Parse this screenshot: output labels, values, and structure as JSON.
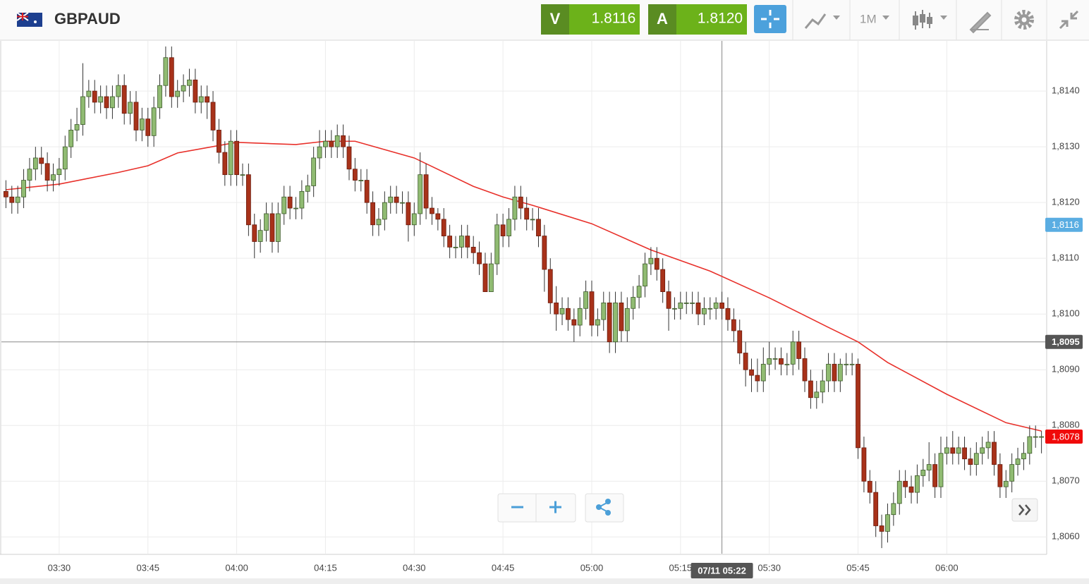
{
  "header": {
    "symbol": "GBPAUD",
    "sell": {
      "label": "V",
      "price": "1.8116"
    },
    "buy": {
      "label": "A",
      "price": "1.8120"
    },
    "timeframe": "1M"
  },
  "chart_data": {
    "type": "candlestick",
    "grid": true,
    "up_color": "#90bb72",
    "down_color": "#a8321a",
    "xlim": [
      "03:20",
      "06:17"
    ],
    "ylim": [
      1.8057,
      1.8149
    ],
    "xticks": [
      "03:30",
      "03:45",
      "04:00",
      "04:15",
      "04:30",
      "04:45",
      "05:00",
      "05:15",
      "05:30",
      "05:45",
      "06:00"
    ],
    "yticks": [
      {
        "value": 1.806,
        "label": "1,8060"
      },
      {
        "value": 1.807,
        "label": "1,8070"
      },
      {
        "value": 1.808,
        "label": "1,8080"
      },
      {
        "value": 1.809,
        "label": "1,8090"
      },
      {
        "value": 1.81,
        "label": "1,8100"
      },
      {
        "value": 1.811,
        "label": "1,8110"
      },
      {
        "value": 1.812,
        "label": "1,8120"
      },
      {
        "value": 1.813,
        "label": "1,8130"
      },
      {
        "value": 1.814,
        "label": "1,8140"
      }
    ],
    "x": [
      "03:21",
      "03:22",
      "03:23",
      "03:24",
      "03:25",
      "03:26",
      "03:27",
      "03:28",
      "03:29",
      "03:30",
      "03:31",
      "03:32",
      "03:33",
      "03:34",
      "03:35",
      "03:36",
      "03:37",
      "03:38",
      "03:39",
      "03:40",
      "03:41",
      "03:42",
      "03:43",
      "03:44",
      "03:45",
      "03:46",
      "03:47",
      "03:48",
      "03:49",
      "03:50",
      "03:51",
      "03:52",
      "03:53",
      "03:54",
      "03:55",
      "03:56",
      "03:57",
      "03:58",
      "03:59",
      "04:00",
      "04:01",
      "04:02",
      "04:03",
      "04:04",
      "04:05",
      "04:06",
      "04:07",
      "04:08",
      "04:09",
      "04:10",
      "04:11",
      "04:12",
      "04:13",
      "04:14",
      "04:15",
      "04:16",
      "04:17",
      "04:18",
      "04:19",
      "04:20",
      "04:21",
      "04:22",
      "04:23",
      "04:24",
      "04:25",
      "04:26",
      "04:27",
      "04:28",
      "04:29",
      "04:30",
      "04:31",
      "04:32",
      "04:33",
      "04:34",
      "04:35",
      "04:36",
      "04:37",
      "04:38",
      "04:39",
      "04:40",
      "04:41",
      "04:42",
      "04:43",
      "04:44",
      "04:45",
      "04:46",
      "04:47",
      "04:48",
      "04:49",
      "04:50",
      "04:51",
      "04:52",
      "04:53",
      "04:54",
      "04:55",
      "04:56",
      "04:57",
      "04:58",
      "04:59",
      "05:00",
      "05:01",
      "05:02",
      "05:03",
      "05:04",
      "05:05",
      "05:06",
      "05:07",
      "05:08",
      "05:09",
      "05:10",
      "05:11",
      "05:12",
      "05:13",
      "05:14",
      "05:15",
      "05:16",
      "05:17",
      "05:18",
      "05:19",
      "05:20",
      "05:21",
      "05:22",
      "05:23",
      "05:24",
      "05:25",
      "05:26",
      "05:27",
      "05:28",
      "05:29",
      "05:30",
      "05:31",
      "05:32",
      "05:33",
      "05:34",
      "05:35",
      "05:36",
      "05:37",
      "05:38",
      "05:39",
      "05:40",
      "05:41",
      "05:42",
      "05:43",
      "05:44",
      "05:45",
      "05:46",
      "05:47",
      "05:48",
      "05:49",
      "05:50",
      "05:51",
      "05:52",
      "05:53",
      "05:54",
      "05:55",
      "05:56",
      "05:57",
      "05:58",
      "05:59",
      "06:00",
      "06:01",
      "06:02",
      "06:03",
      "06:04",
      "06:05",
      "06:06",
      "06:07",
      "06:08",
      "06:09",
      "06:10",
      "06:11",
      "06:12",
      "06:13",
      "06:14",
      "06:15",
      "06:16"
    ],
    "open": [
      1.8122,
      1.8121,
      1.812,
      1.8121,
      1.8124,
      1.8126,
      1.8128,
      1.8127,
      1.8124,
      1.8125,
      1.8126,
      1.813,
      1.8133,
      1.8134,
      1.8139,
      1.814,
      1.8138,
      1.8139,
      1.8137,
      1.8139,
      1.8141,
      1.8136,
      1.8138,
      1.8133,
      1.8135,
      1.8132,
      1.8137,
      1.8141,
      1.8146,
      1.8139,
      1.814,
      1.8141,
      1.8142,
      1.8138,
      1.8139,
      1.8138,
      1.8133,
      1.8129,
      1.8125,
      1.8131,
      1.8125,
      1.8125,
      1.8116,
      1.8113,
      1.8115,
      1.8118,
      1.8113,
      1.8118,
      1.8121,
      1.8119,
      1.8119,
      1.8122,
      1.8123,
      1.8128,
      1.813,
      1.8131,
      1.813,
      1.8132,
      1.813,
      1.8126,
      1.8124,
      1.8124,
      1.812,
      1.8116,
      1.8117,
      1.812,
      1.8121,
      1.812,
      1.812,
      1.8116,
      1.8118,
      1.8125,
      1.8119,
      1.8118,
      1.8117,
      1.8114,
      1.8112,
      1.8112,
      1.8114,
      1.8112,
      1.8111,
      1.8109,
      1.8104,
      1.8109,
      1.8116,
      1.8114,
      1.8117,
      1.8121,
      1.8119,
      1.8117,
      1.8117,
      1.8114,
      1.8108,
      1.8102,
      1.81,
      1.8101,
      1.8099,
      1.8098,
      1.8101,
      1.8104,
      1.8098,
      1.8099,
      1.8102,
      1.8095,
      1.8102,
      1.8097,
      1.8101,
      1.8103,
      1.8105,
      1.8109,
      1.811,
      1.8108,
      1.8104,
      1.8101,
      1.8101,
      1.8102,
      1.8102,
      1.8102,
      1.81,
      1.8101,
      1.8101,
      1.8102,
      1.8101,
      1.8099,
      1.8097,
      1.8093,
      1.809,
      1.8089,
      1.8088,
      1.8091,
      1.8092,
      1.8092,
      1.8091,
      1.8091,
      1.8095,
      1.8092,
      1.8088,
      1.8085,
      1.8086,
      1.8088,
      1.8091,
      1.8088,
      1.8091,
      1.8091,
      1.8091,
      1.8076,
      1.807,
      1.8068,
      1.8062,
      1.8061,
      1.8064,
      1.8066,
      1.807,
      1.8069,
      1.8068,
      1.8071,
      1.8072,
      1.8073,
      1.8069,
      1.8075,
      1.8076,
      1.8075,
      1.8076,
      1.8074,
      1.8073,
      1.8075,
      1.8076,
      1.8077,
      1.8073,
      1.8069,
      1.807,
      1.8073,
      1.8074,
      1.8075,
      1.8078,
      1.8078
    ],
    "high": [
      1.8124,
      1.8123,
      1.8123,
      1.8126,
      1.8128,
      1.813,
      1.813,
      1.8129,
      1.8127,
      1.8128,
      1.8132,
      1.8135,
      1.8137,
      1.8145,
      1.8142,
      1.8142,
      1.8141,
      1.8141,
      1.8141,
      1.8143,
      1.8143,
      1.814,
      1.814,
      1.8137,
      1.8137,
      1.8139,
      1.8143,
      1.8148,
      1.8148,
      1.8142,
      1.8143,
      1.8144,
      1.8144,
      1.8141,
      1.8141,
      1.814,
      1.8135,
      1.8131,
      1.8133,
      1.8133,
      1.8127,
      1.8127,
      1.8118,
      1.8117,
      1.812,
      1.812,
      1.812,
      1.8123,
      1.8123,
      1.8121,
      1.8124,
      1.8125,
      1.813,
      1.8133,
      1.8133,
      1.8133,
      1.8134,
      1.8134,
      1.8132,
      1.8128,
      1.8126,
      1.8126,
      1.8122,
      1.8119,
      1.8122,
      1.8123,
      1.8123,
      1.8122,
      1.8122,
      1.812,
      1.8129,
      1.8127,
      1.8121,
      1.8119,
      1.8119,
      1.8116,
      1.8114,
      1.8116,
      1.8116,
      1.8114,
      1.8113,
      1.8111,
      1.8111,
      1.8118,
      1.8118,
      1.8119,
      1.8123,
      1.8123,
      1.8121,
      1.8119,
      1.8119,
      1.8116,
      1.811,
      1.8105,
      1.8103,
      1.8103,
      1.8101,
      1.8103,
      1.8106,
      1.8106,
      1.8101,
      1.8104,
      1.8104,
      1.8104,
      1.8104,
      1.8103,
      1.8105,
      1.8107,
      1.8111,
      1.8112,
      1.8112,
      1.811,
      1.8106,
      1.8103,
      1.8104,
      1.8104,
      1.8104,
      1.8104,
      1.8103,
      1.8103,
      1.8103,
      1.8104,
      1.8103,
      1.8101,
      1.8099,
      1.8095,
      1.8092,
      1.8092,
      1.8094,
      1.8095,
      1.8094,
      1.8094,
      1.8093,
      1.8097,
      1.8097,
      1.8094,
      1.809,
      1.8088,
      1.809,
      1.8093,
      1.8093,
      1.8092,
      1.8093,
      1.8093,
      1.8092,
      1.8078,
      1.8072,
      1.807,
      1.8064,
      1.8066,
      1.8068,
      1.8072,
      1.8072,
      1.8071,
      1.8073,
      1.8074,
      1.8077,
      1.8075,
      1.8078,
      1.8078,
      1.8079,
      1.8078,
      1.8078,
      1.8076,
      1.8077,
      1.8078,
      1.8079,
      1.8079,
      1.8075,
      1.8072,
      1.8075,
      1.8076,
      1.8077,
      1.808,
      1.808,
      1.8079
    ],
    "low": [
      1.8119,
      1.8118,
      1.8118,
      1.8119,
      1.8122,
      1.8124,
      1.8125,
      1.8122,
      1.8122,
      1.8123,
      1.8124,
      1.8128,
      1.8131,
      1.8132,
      1.8137,
      1.8136,
      1.8136,
      1.8135,
      1.8135,
      1.8137,
      1.8134,
      1.8134,
      1.8131,
      1.8131,
      1.813,
      1.813,
      1.8135,
      1.8139,
      1.8137,
      1.8137,
      1.8138,
      1.8139,
      1.8136,
      1.8136,
      1.8135,
      1.8131,
      1.8127,
      1.8123,
      1.8123,
      1.8123,
      1.8123,
      1.8114,
      1.811,
      1.8111,
      1.8113,
      1.8111,
      1.8111,
      1.8116,
      1.8117,
      1.8117,
      1.8117,
      1.812,
      1.8121,
      1.8126,
      1.8128,
      1.8128,
      1.8128,
      1.8128,
      1.8124,
      1.8122,
      1.8122,
      1.8118,
      1.8114,
      1.8114,
      1.8115,
      1.8118,
      1.8118,
      1.8118,
      1.8113,
      1.8114,
      1.8116,
      1.8117,
      1.8116,
      1.8115,
      1.8112,
      1.811,
      1.811,
      1.811,
      1.811,
      1.8109,
      1.8107,
      1.8104,
      1.8104,
      1.8107,
      1.8112,
      1.8112,
      1.8115,
      1.8117,
      1.8115,
      1.8115,
      1.8112,
      1.8104,
      1.81,
      1.8097,
      1.8098,
      1.8097,
      1.8095,
      1.8096,
      1.8099,
      1.8096,
      1.8096,
      1.8097,
      1.8093,
      1.8093,
      1.8095,
      1.8095,
      1.8099,
      1.8101,
      1.8103,
      1.8107,
      1.8106,
      1.8102,
      1.8097,
      1.8099,
      1.8099,
      1.81,
      1.81,
      1.8098,
      1.8098,
      1.8099,
      1.8099,
      1.8099,
      1.8097,
      1.8095,
      1.8091,
      1.8087,
      1.8086,
      1.8086,
      1.8086,
      1.8089,
      1.809,
      1.8089,
      1.8089,
      1.8089,
      1.809,
      1.8086,
      1.8083,
      1.8083,
      1.8084,
      1.8086,
      1.8086,
      1.8086,
      1.8089,
      1.8089,
      1.8074,
      1.8068,
      1.8066,
      1.806,
      1.8058,
      1.8059,
      1.8062,
      1.8064,
      1.8067,
      1.8066,
      1.8066,
      1.8069,
      1.807,
      1.8067,
      1.8067,
      1.8073,
      1.8073,
      1.8073,
      1.8072,
      1.8071,
      1.8071,
      1.8073,
      1.8074,
      1.8071,
      1.8067,
      1.8067,
      1.8068,
      1.8071,
      1.8072,
      1.8073,
      1.8076,
      1.8075
    ],
    "close": [
      1.8121,
      1.812,
      1.8121,
      1.8124,
      1.8126,
      1.8128,
      1.8127,
      1.8124,
      1.8125,
      1.8126,
      1.813,
      1.8133,
      1.8134,
      1.8139,
      1.814,
      1.8138,
      1.8139,
      1.8137,
      1.8139,
      1.8141,
      1.8136,
      1.8138,
      1.8133,
      1.8135,
      1.8132,
      1.8137,
      1.8141,
      1.8146,
      1.8139,
      1.814,
      1.8141,
      1.8142,
      1.8138,
      1.8139,
      1.8138,
      1.8133,
      1.8129,
      1.8125,
      1.8131,
      1.8125,
      1.8125,
      1.8116,
      1.8113,
      1.8115,
      1.8118,
      1.8113,
      1.8118,
      1.8121,
      1.8119,
      1.8119,
      1.8122,
      1.8123,
      1.8128,
      1.813,
      1.8131,
      1.813,
      1.8132,
      1.813,
      1.8126,
      1.8124,
      1.8124,
      1.812,
      1.8116,
      1.8117,
      1.812,
      1.8121,
      1.812,
      1.812,
      1.8116,
      1.8118,
      1.8125,
      1.8119,
      1.8118,
      1.8117,
      1.8114,
      1.8112,
      1.8112,
      1.8114,
      1.8112,
      1.8111,
      1.8109,
      1.8104,
      1.8109,
      1.8116,
      1.8114,
      1.8117,
      1.8121,
      1.8119,
      1.8117,
      1.8117,
      1.8114,
      1.8108,
      1.8102,
      1.81,
      1.8101,
      1.8099,
      1.8098,
      1.8101,
      1.8104,
      1.8098,
      1.8099,
      1.8102,
      1.8095,
      1.8102,
      1.8097,
      1.8101,
      1.8103,
      1.8105,
      1.8109,
      1.811,
      1.8108,
      1.8104,
      1.8101,
      1.8101,
      1.8102,
      1.8102,
      1.8102,
      1.81,
      1.8101,
      1.8101,
      1.8102,
      1.8101,
      1.8099,
      1.8097,
      1.8093,
      1.809,
      1.8089,
      1.8088,
      1.8091,
      1.8092,
      1.8092,
      1.8091,
      1.8091,
      1.8095,
      1.8092,
      1.8088,
      1.8085,
      1.8086,
      1.8088,
      1.8091,
      1.8088,
      1.8091,
      1.8091,
      1.8091,
      1.8076,
      1.807,
      1.8068,
      1.8062,
      1.8061,
      1.8064,
      1.8066,
      1.807,
      1.8069,
      1.8068,
      1.8071,
      1.8072,
      1.8073,
      1.8069,
      1.8075,
      1.8076,
      1.8075,
      1.8076,
      1.8074,
      1.8073,
      1.8075,
      1.8076,
      1.8077,
      1.8073,
      1.8069,
      1.807,
      1.8073,
      1.8074,
      1.8075,
      1.8078,
      1.8078,
      1.8078
    ],
    "ma_line": {
      "color": "#e8302a",
      "x": [
        "03:21",
        "03:30",
        "03:40",
        "03:45",
        "03:50",
        "04:00",
        "04:10",
        "04:15",
        "04:20",
        "04:30",
        "04:40",
        "04:45",
        "04:50",
        "05:00",
        "05:10",
        "05:20",
        "05:30",
        "05:40",
        "05:45",
        "05:50",
        "06:00",
        "06:10",
        "06:16"
      ],
      "values": [
        1.81223,
        1.81233,
        1.81254,
        1.81266,
        1.81289,
        1.81308,
        1.81304,
        1.8131,
        1.8131,
        1.8128,
        1.81229,
        1.8121,
        1.81195,
        1.81162,
        1.81115,
        1.81077,
        1.81029,
        1.80976,
        1.8095,
        1.80913,
        1.80856,
        1.80805,
        1.8079
      ]
    },
    "crosshair": {
      "value": 1.8095,
      "label": "1,8095",
      "time": "05:22",
      "time_label": "07/11 05:22"
    },
    "price_tags": [
      {
        "value": 1.8116,
        "label": "1,8116",
        "color": "#5aade2"
      },
      {
        "value": 1.8078,
        "label": "1,8078",
        "color": "#f00a0a"
      }
    ]
  }
}
